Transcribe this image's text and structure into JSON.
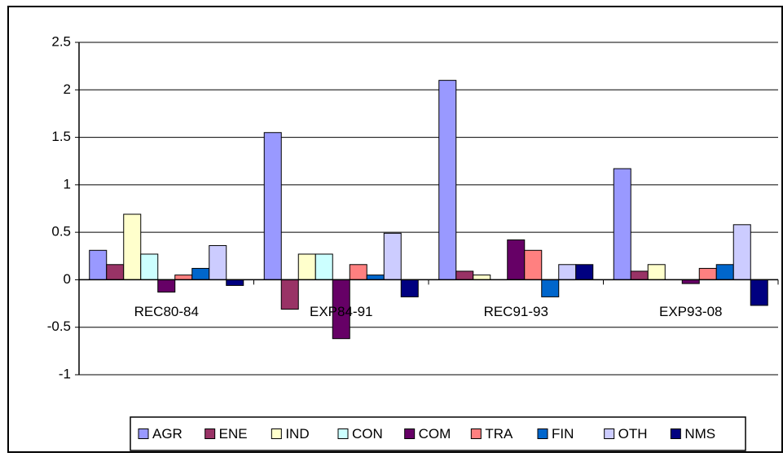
{
  "chart_data": {
    "type": "bar",
    "categories": [
      "REC80-84",
      "EXP84-91",
      "REC91-93",
      "EXP93-08"
    ],
    "series": [
      {
        "name": "AGR",
        "color": "#9999ff",
        "values": [
          0.31,
          1.55,
          2.1,
          1.17
        ]
      },
      {
        "name": "ENE",
        "color": "#993366",
        "values": [
          0.16,
          -0.31,
          0.09,
          0.09
        ]
      },
      {
        "name": "IND",
        "color": "#ffffcc",
        "values": [
          0.69,
          0.27,
          0.05,
          0.16
        ]
      },
      {
        "name": "CON",
        "color": "#ccffff",
        "values": [
          0.27,
          0.27,
          0,
          0
        ]
      },
      {
        "name": "COM",
        "color": "#660066",
        "values": [
          -0.13,
          -0.62,
          0.42,
          -0.04
        ]
      },
      {
        "name": "TRA",
        "color": "#ff8080",
        "values": [
          0.05,
          0.16,
          0.31,
          0.12
        ]
      },
      {
        "name": "FIN",
        "color": "#0066cc",
        "values": [
          0.12,
          0.05,
          -0.18,
          0.16
        ]
      },
      {
        "name": "OTH",
        "color": "#ccccff",
        "values": [
          0.36,
          0.49,
          0.16,
          0.58
        ]
      },
      {
        "name": "NMS",
        "color": "#000080",
        "values": [
          -0.06,
          -0.18,
          0.16,
          -0.27
        ]
      }
    ],
    "ylim": [
      -1,
      2.5
    ],
    "yticks": [
      -1,
      -0.5,
      0,
      0.5,
      1,
      1.5,
      2,
      2.5
    ],
    "grid": true,
    "legend": "bottom"
  }
}
